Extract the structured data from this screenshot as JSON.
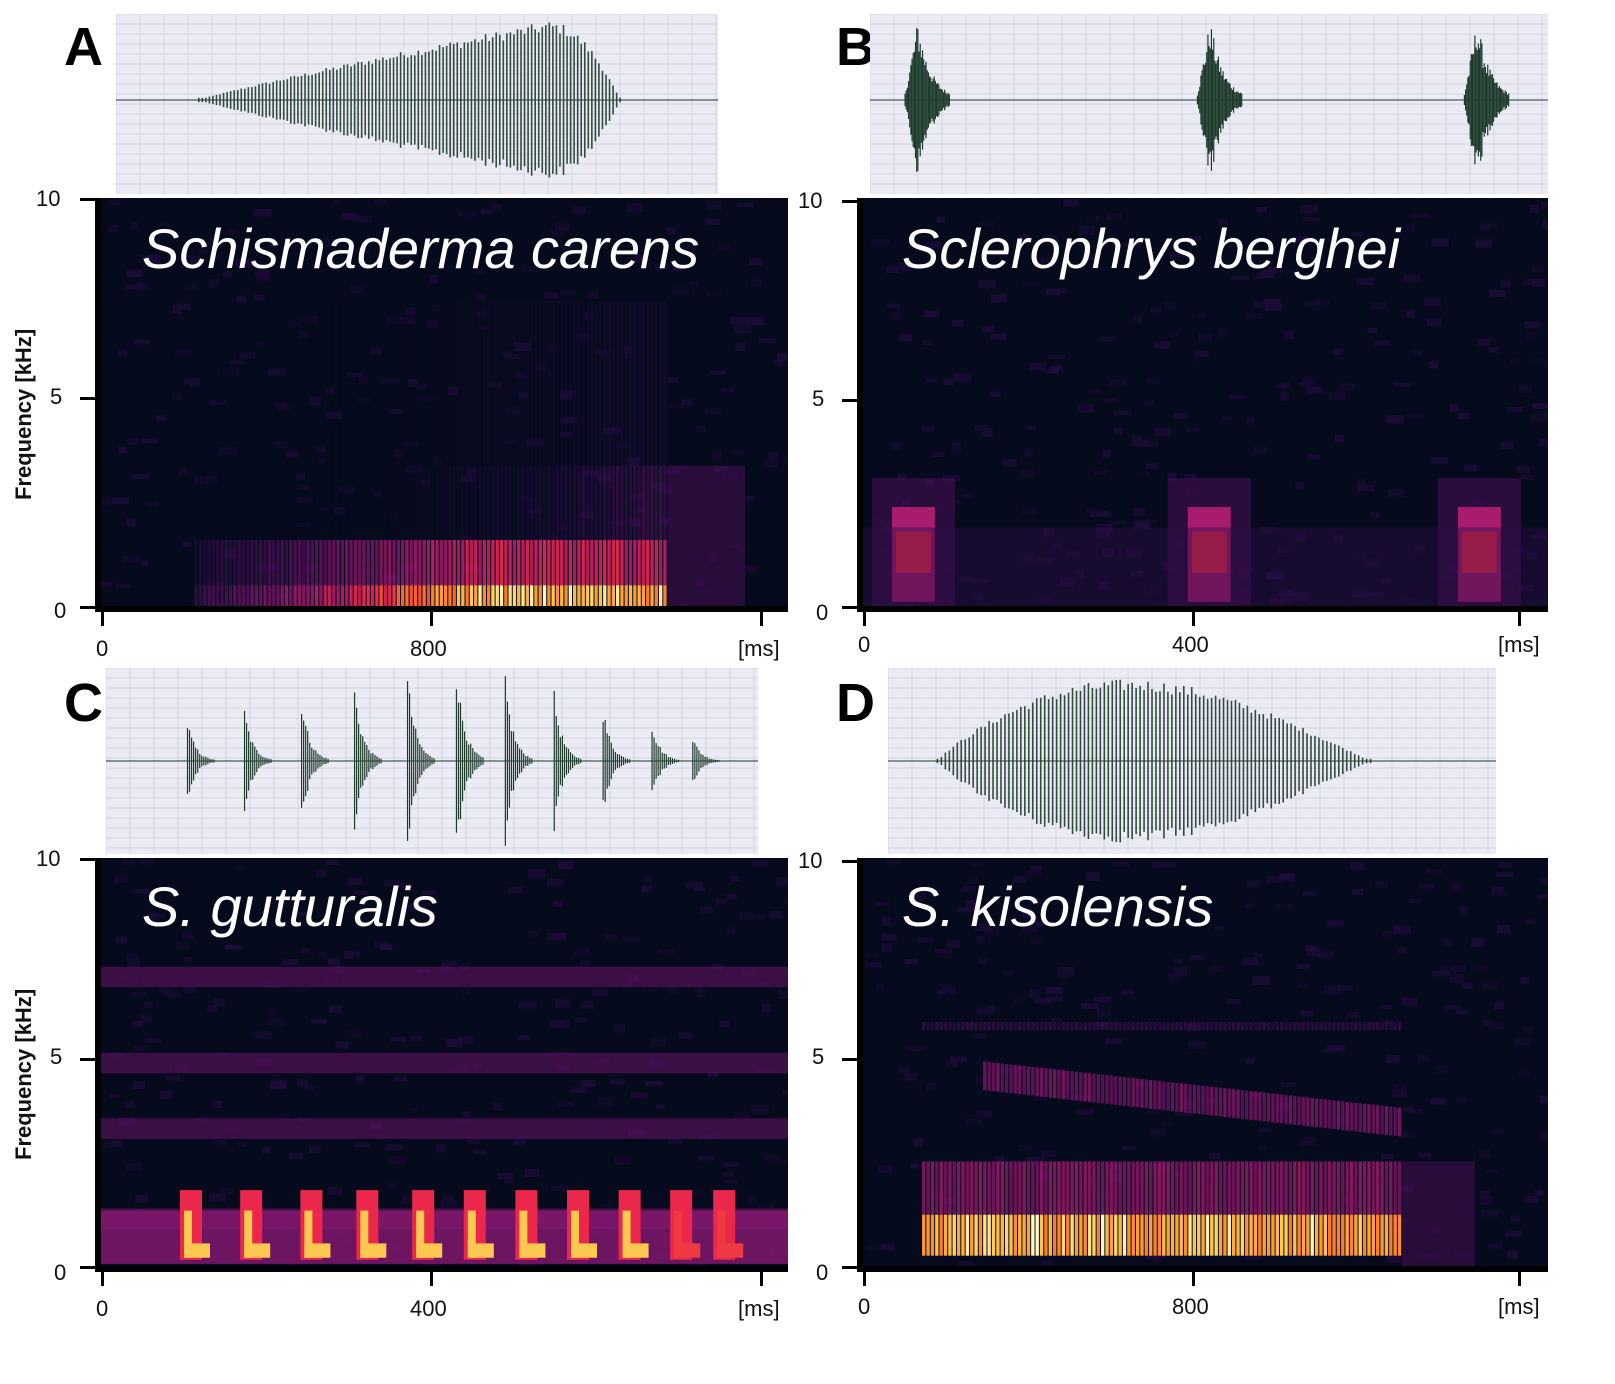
{
  "chart_data": [
    {
      "panel": "A",
      "type": "heatmap",
      "title": "Schismaderma carens",
      "ylabel": "Frequency [kHz]",
      "xunit": "[ms]",
      "ylim": [
        0,
        10
      ],
      "yticks": [
        "0",
        "5",
        "10"
      ],
      "xlim": [
        0,
        1600
      ],
      "xticks": [
        {
          "value": 0,
          "label": "0"
        },
        {
          "value": 800,
          "label": "800"
        }
      ],
      "xtick_marks": [
        0,
        800,
        1600
      ],
      "call": {
        "start_ms": 220,
        "end_ms": 1320,
        "fade_end_ms": 1500
      },
      "bands": [
        {
          "f_low": 0.05,
          "f_high": 0.6,
          "intensity": 1.0
        },
        {
          "f_low": 0.6,
          "f_high": 1.7,
          "intensity": 0.7
        },
        {
          "f_low": 1.7,
          "f_high": 3.5,
          "intensity": 0.35
        },
        {
          "f_low": 3.5,
          "f_high": 7.5,
          "intensity": 0.18
        }
      ],
      "waveform": {
        "start_ms": 220,
        "end_ms": 1340,
        "peak_ms": 1150,
        "shape": "crescendo",
        "pulses": 120
      }
    },
    {
      "panel": "B",
      "type": "heatmap",
      "title": "Sclerophrys berghei",
      "ylabel": "",
      "xunit": "[ms]",
      "ylim": [
        0,
        10
      ],
      "yticks": [
        "0",
        "5",
        "10"
      ],
      "xlim": [
        0,
        800
      ],
      "xticks": [
        {
          "value": 0,
          "label": "0"
        },
        {
          "value": 400,
          "label": "400"
        }
      ],
      "xtick_marks": [
        0,
        400,
        800
      ],
      "notes": [
        {
          "start_ms": 35,
          "end_ms": 85,
          "f_low": 0.2,
          "f_high": 2.5,
          "f_center": 1.4
        },
        {
          "start_ms": 380,
          "end_ms": 430,
          "f_low": 0.2,
          "f_high": 2.5,
          "f_center": 1.4
        },
        {
          "start_ms": 695,
          "end_ms": 745,
          "f_low": 0.2,
          "f_high": 2.5,
          "f_center": 1.4
        }
      ],
      "waveform": {
        "bursts_ms": [
          40,
          385,
          700
        ],
        "burst_length_ms": 55
      }
    },
    {
      "panel": "C",
      "type": "heatmap",
      "title": "S. gutturalis",
      "ylabel": "Frequency [kHz]",
      "xunit": "[ms]",
      "ylim": [
        0,
        10
      ],
      "yticks": [
        "0",
        "5",
        "10"
      ],
      "xlim": [
        0,
        800
      ],
      "xticks": [
        {
          "value": 0,
          "label": "0"
        },
        {
          "value": 400,
          "label": "400"
        }
      ],
      "xtick_marks": [
        0,
        400,
        800
      ],
      "pulses_ms": [
        100,
        170,
        240,
        305,
        370,
        430,
        490,
        550,
        610,
        670,
        720
      ],
      "harmonic_bands_khz": [
        7.1,
        5.0,
        3.4,
        1.2
      ],
      "waveform": {
        "pulses_ms": [
          100,
          170,
          240,
          305,
          370,
          430,
          490,
          550,
          610,
          670,
          720
        ]
      }
    },
    {
      "panel": "D",
      "type": "heatmap",
      "title": "S. kisolensis",
      "ylabel": "",
      "xunit": "[ms]",
      "ylim": [
        0,
        10
      ],
      "yticks": [
        "0",
        "5",
        "10"
      ],
      "xlim": [
        0,
        1600
      ],
      "xticks": [
        {
          "value": 0,
          "label": "0"
        },
        {
          "value": 800,
          "label": "800"
        }
      ],
      "xtick_marks": [
        0,
        800,
        1600
      ],
      "call": {
        "start_ms": 140,
        "end_ms": 1260,
        "fade_end_ms": 1430
      },
      "bands": [
        {
          "f_low": 0.3,
          "f_high": 1.3,
          "intensity": 1.0
        },
        {
          "f_low": 1.3,
          "f_high": 2.6,
          "intensity": 0.55
        },
        {
          "f_low": 3.7,
          "f_high": 5.0,
          "intensity": 0.5,
          "sweep": "descending"
        },
        {
          "f_low": 5.8,
          "f_high": 6.0,
          "intensity": 0.3
        }
      ],
      "waveform": {
        "start_ms": 130,
        "end_ms": 1270,
        "peak_ms": 800,
        "shape": "spindle",
        "pulses": 110
      }
    }
  ],
  "colors": {
    "spectrogram_bg": "#050b1c",
    "waveform_bg": "#ebebf6",
    "waveform_line": "#1e3b2b",
    "grid": "#d4d4e4"
  }
}
